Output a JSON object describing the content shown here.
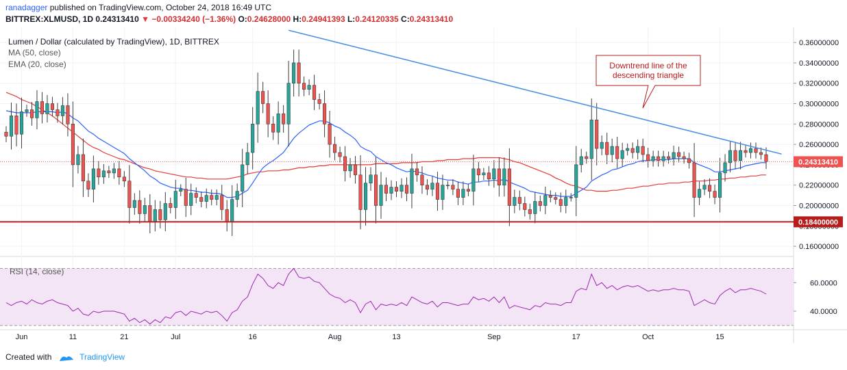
{
  "header": {
    "user": "ranadagger",
    "published_text": "published on TradingView.com, October 24, 2018 16:49 UTC",
    "symbol": "BITTREX:XLMUSD, 1D",
    "last": "0.24313410",
    "change": "−0.00334240 (−1.36%)",
    "open_label": "O:",
    "open": "0.24628000",
    "high_label": "H:",
    "high": "0.24941393",
    "low_label": "L:",
    "low": "0.24120335",
    "close_label": "C:",
    "close": "0.24313410"
  },
  "footer": {
    "created_with": "Created with",
    "brand": "TradingView"
  },
  "colors": {
    "up": "#26a69a",
    "down": "#ef5350",
    "ma": "#e53935",
    "ema": "#2962ff",
    "trendline": "#4a90e2",
    "support": "#b71c1c",
    "rsi": "#9c27b0",
    "rsi_band": "#f3e5f5"
  },
  "chart_data": [
    {
      "type": "candlestick",
      "title": "Lumen / Dollar (calculated by TradingView), 1D, BITTREX",
      "indicators": [
        "MA (50, close)",
        "EMA (20, close)"
      ],
      "x_ticks": [
        {
          "i": 3,
          "label": "Jun"
        },
        {
          "i": 13,
          "label": "11"
        },
        {
          "i": 23,
          "label": "21"
        },
        {
          "i": 33,
          "label": "Jul"
        },
        {
          "i": 48,
          "label": "16"
        },
        {
          "i": 64,
          "label": "Aug"
        },
        {
          "i": 76,
          "label": "13"
        },
        {
          "i": 95,
          "label": "Sep"
        },
        {
          "i": 111,
          "label": "17"
        },
        {
          "i": 125,
          "label": "Oct"
        },
        {
          "i": 139,
          "label": "15"
        }
      ],
      "y_ticks": [
        0.16,
        0.18,
        0.2,
        0.22,
        0.24,
        0.26,
        0.28,
        0.3,
        0.32,
        0.34,
        0.36
      ],
      "y_range": [
        0.15,
        0.3735
      ],
      "last_price_label": "0.24313410",
      "annotation": "Downtrend line of the descending triangle",
      "trendline": {
        "from": {
          "i": 55,
          "value": 0.372
        },
        "to": {
          "i": 151,
          "value": 0.2505
        }
      },
      "support": {
        "value": 0.184,
        "label": "0.18400000"
      },
      "close": [
        0.268,
        0.288,
        0.27,
        0.292,
        0.294,
        0.286,
        0.302,
        0.29,
        0.3,
        0.294,
        0.288,
        0.298,
        0.28,
        0.24,
        0.25,
        0.224,
        0.216,
        0.236,
        0.228,
        0.234,
        0.232,
        0.236,
        0.228,
        0.224,
        0.198,
        0.205,
        0.192,
        0.2,
        0.184,
        0.196,
        0.186,
        0.202,
        0.198,
        0.214,
        0.216,
        0.2,
        0.212,
        0.208,
        0.204,
        0.21,
        0.206,
        0.21,
        0.196,
        0.184,
        0.206,
        0.214,
        0.24,
        0.252,
        0.28,
        0.312,
        0.3,
        0.28,
        0.272,
        0.29,
        0.28,
        0.32,
        0.34,
        0.32,
        0.314,
        0.318,
        0.304,
        0.3,
        0.28,
        0.26,
        0.252,
        0.248,
        0.234,
        0.24,
        0.23,
        0.196,
        0.222,
        0.23,
        0.2,
        0.22,
        0.212,
        0.218,
        0.214,
        0.22,
        0.212,
        0.236,
        0.23,
        0.22,
        0.216,
        0.222,
        0.206,
        0.22,
        0.22,
        0.216,
        0.208,
        0.216,
        0.214,
        0.236,
        0.23,
        0.232,
        0.226,
        0.236,
        0.22,
        0.236,
        0.2,
        0.208,
        0.202,
        0.196,
        0.192,
        0.204,
        0.2,
        0.21,
        0.208,
        0.206,
        0.2,
        0.208,
        0.208,
        0.24,
        0.248,
        0.246,
        0.284,
        0.256,
        0.262,
        0.25,
        0.258,
        0.246,
        0.254,
        0.256,
        0.252,
        0.258,
        0.25,
        0.244,
        0.248,
        0.244,
        0.248,
        0.246,
        0.252,
        0.248,
        0.246,
        0.242,
        0.208,
        0.216,
        0.22,
        0.214,
        0.208,
        0.232,
        0.242,
        0.254,
        0.244,
        0.254,
        0.252,
        0.256,
        0.252,
        0.25,
        0.243
      ],
      "ma_50": [
        0.311,
        0.309,
        0.307,
        0.304,
        0.302,
        0.3,
        0.297,
        0.294,
        0.291,
        0.288,
        0.284,
        0.28,
        0.276,
        0.272,
        0.268,
        0.264,
        0.26,
        0.257,
        0.255,
        0.252,
        0.25,
        0.248,
        0.246,
        0.245,
        0.243,
        0.241,
        0.239,
        0.237,
        0.236,
        0.234,
        0.233,
        0.232,
        0.231,
        0.23,
        0.229,
        0.228,
        0.228,
        0.227,
        0.227,
        0.226,
        0.226,
        0.226,
        0.226,
        0.226,
        0.227,
        0.228,
        0.229,
        0.231,
        0.232,
        0.233,
        0.233,
        0.234,
        0.234,
        0.234,
        0.235,
        0.235,
        0.236,
        0.237,
        0.237,
        0.238,
        0.238,
        0.239,
        0.239,
        0.24,
        0.24,
        0.24,
        0.24,
        0.24,
        0.24,
        0.24,
        0.24,
        0.24,
        0.241,
        0.241,
        0.241,
        0.241,
        0.241,
        0.242,
        0.242,
        0.242,
        0.242,
        0.243,
        0.243,
        0.243,
        0.244,
        0.244,
        0.245,
        0.245,
        0.245,
        0.246,
        0.246,
        0.246,
        0.247,
        0.247,
        0.247,
        0.247,
        0.247,
        0.246,
        0.245,
        0.243,
        0.242,
        0.24,
        0.238,
        0.236,
        0.234,
        0.232,
        0.23,
        0.227,
        0.225,
        0.222,
        0.22,
        0.219,
        0.217,
        0.215,
        0.215,
        0.214,
        0.214,
        0.214,
        0.215,
        0.215,
        0.216,
        0.217,
        0.217,
        0.218,
        0.219,
        0.219,
        0.22,
        0.221,
        0.221,
        0.222,
        0.222,
        0.222,
        0.223,
        0.223,
        0.224,
        0.224,
        0.224,
        0.225,
        0.225,
        0.226,
        0.226,
        0.227,
        0.227,
        0.228,
        0.228,
        0.229,
        0.229,
        0.23,
        0.23
      ],
      "ema_20": [
        0.293,
        0.292,
        0.291,
        0.291,
        0.291,
        0.291,
        0.292,
        0.292,
        0.292,
        0.292,
        0.291,
        0.292,
        0.29,
        0.286,
        0.283,
        0.278,
        0.273,
        0.27,
        0.266,
        0.263,
        0.26,
        0.257,
        0.254,
        0.251,
        0.246,
        0.242,
        0.238,
        0.234,
        0.229,
        0.226,
        0.222,
        0.22,
        0.218,
        0.217,
        0.217,
        0.215,
        0.215,
        0.214,
        0.213,
        0.213,
        0.212,
        0.212,
        0.211,
        0.208,
        0.208,
        0.209,
        0.212,
        0.215,
        0.222,
        0.23,
        0.237,
        0.241,
        0.244,
        0.248,
        0.252,
        0.259,
        0.266,
        0.271,
        0.275,
        0.279,
        0.281,
        0.283,
        0.283,
        0.281,
        0.278,
        0.276,
        0.272,
        0.269,
        0.265,
        0.258,
        0.255,
        0.253,
        0.248,
        0.245,
        0.242,
        0.24,
        0.237,
        0.235,
        0.233,
        0.234,
        0.233,
        0.232,
        0.23,
        0.229,
        0.227,
        0.226,
        0.225,
        0.225,
        0.223,
        0.222,
        0.221,
        0.223,
        0.223,
        0.224,
        0.224,
        0.225,
        0.224,
        0.226,
        0.223,
        0.221,
        0.219,
        0.217,
        0.214,
        0.213,
        0.212,
        0.211,
        0.21,
        0.21,
        0.209,
        0.209,
        0.209,
        0.212,
        0.215,
        0.218,
        0.224,
        0.227,
        0.23,
        0.232,
        0.235,
        0.236,
        0.238,
        0.24,
        0.241,
        0.243,
        0.244,
        0.244,
        0.245,
        0.245,
        0.245,
        0.245,
        0.246,
        0.246,
        0.246,
        0.246,
        0.242,
        0.24,
        0.238,
        0.236,
        0.233,
        0.233,
        0.234,
        0.235,
        0.236,
        0.237,
        0.239,
        0.24,
        0.241,
        0.242,
        0.242
      ]
    },
    {
      "type": "line",
      "title": "RSI (14, close)",
      "y_ticks": [
        40,
        60
      ],
      "y_range": [
        28,
        76
      ],
      "band": [
        30,
        70
      ],
      "values": [
        46,
        44,
        46,
        47,
        45,
        48,
        46,
        45,
        47,
        48,
        46,
        45,
        44,
        40,
        42,
        38,
        37,
        40,
        39,
        40,
        40,
        40,
        39,
        38,
        33,
        35,
        32,
        34,
        31,
        34,
        32,
        36,
        35,
        39,
        40,
        37,
        40,
        39,
        38,
        40,
        39,
        40,
        37,
        33,
        39,
        41,
        47,
        50,
        59,
        66,
        63,
        58,
        56,
        60,
        58,
        66,
        70,
        64,
        63,
        64,
        61,
        60,
        56,
        52,
        50,
        49,
        46,
        48,
        46,
        39,
        45,
        47,
        41,
        45,
        44,
        45,
        44,
        46,
        44,
        50,
        48,
        46,
        45,
        47,
        43,
        46,
        46,
        45,
        44,
        45,
        45,
        50,
        48,
        49,
        47,
        50,
        46,
        50,
        42,
        44,
        43,
        42,
        41,
        44,
        43,
        46,
        45,
        45,
        44,
        46,
        46,
        54,
        56,
        55,
        66,
        58,
        60,
        56,
        58,
        55,
        57,
        58,
        57,
        58,
        56,
        54,
        55,
        54,
        55,
        55,
        56,
        55,
        55,
        54,
        44,
        46,
        48,
        46,
        45,
        51,
        54,
        56,
        53,
        55,
        55,
        56,
        55,
        54,
        52
      ]
    }
  ]
}
